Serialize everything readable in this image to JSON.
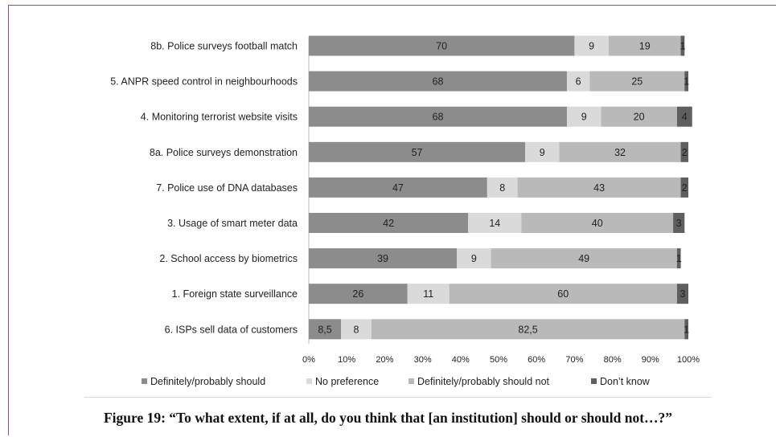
{
  "chart_data": {
    "type": "bar",
    "orientation": "horizontal",
    "stacked": true,
    "percent": true,
    "categories": [
      "8b. Police surveys football match",
      "5. ANPR  speed control in neighbourhoods",
      "4. Monitoring terrorist website visits",
      "8a. Police surveys demonstration",
      "7. Police use of DNA databases",
      "3. Usage of smart meter data",
      "2. School access by biometrics",
      "1. Foreign state surveillance",
      "6. ISPs sell data of customers"
    ],
    "series": [
      {
        "name": "Definitely/probably should",
        "color": "#8c8c8c",
        "values": [
          70,
          68,
          68,
          57,
          47,
          42,
          39,
          26,
          8.5
        ],
        "labels": [
          "70",
          "68",
          "68",
          "57",
          "47",
          "42",
          "39",
          "26",
          "8,5"
        ]
      },
      {
        "name": "No preference",
        "color": "#dadada",
        "values": [
          9,
          6,
          9,
          9,
          8,
          14,
          9,
          11,
          8
        ],
        "labels": [
          "9",
          "6",
          "9",
          "9",
          "8",
          "14",
          "9",
          "11",
          "8"
        ]
      },
      {
        "name": "Definitely/probably should not",
        "color": "#b9b9b9",
        "values": [
          19,
          25,
          20,
          32,
          43,
          40,
          49,
          60,
          82.5
        ],
        "labels": [
          "19",
          "25",
          "20",
          "32",
          "43",
          "40",
          "49",
          "60",
          "82,5"
        ]
      },
      {
        "name": "Don’t know",
        "color": "#5f5f5f",
        "values": [
          1,
          1,
          4,
          2,
          2,
          3,
          1,
          3,
          1
        ],
        "labels": [
          "1",
          "1",
          "4",
          "2",
          "2",
          "3",
          "1",
          "3",
          "1"
        ]
      }
    ],
    "xlim": [
      0,
      100
    ],
    "xticks": [
      "0%",
      "10%",
      "20%",
      "30%",
      "40%",
      "50%",
      "60%",
      "70%",
      "80%",
      "90%",
      "100%"
    ],
    "legend_position": "bottom",
    "grid": false
  },
  "caption": "Figure 19: “To what extent, if at all, do you think that [an institution] should or should not…?”"
}
